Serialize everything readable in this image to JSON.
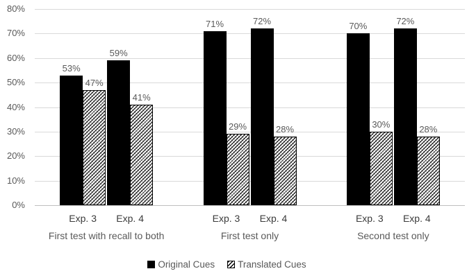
{
  "chart_data": {
    "type": "bar",
    "title": "",
    "xlabel": "",
    "ylabel": "",
    "ylim": [
      0,
      80
    ],
    "ytick_step": 10,
    "ytick_labels": [
      "0%",
      "10%",
      "20%",
      "30%",
      "40%",
      "50%",
      "60%",
      "70%",
      "80%"
    ],
    "grid": true,
    "legend_position": "bottom",
    "legend": [
      {
        "label": "Original Cues",
        "fill": "solid"
      },
      {
        "label": "Translated Cues",
        "fill": "hatched"
      }
    ],
    "groups": [
      {
        "label": "First test with recall to both",
        "clusters": [
          {
            "label": "Exp. 3",
            "bars": [
              {
                "series": "Original Cues",
                "value": 53,
                "label": "53%"
              },
              {
                "series": "Translated Cues",
                "value": 47,
                "label": "47%"
              }
            ]
          },
          {
            "label": "Exp. 4",
            "bars": [
              {
                "series": "Original Cues",
                "value": 59,
                "label": "59%"
              },
              {
                "series": "Translated Cues",
                "value": 41,
                "label": "41%"
              }
            ]
          }
        ]
      },
      {
        "label": "First test only",
        "clusters": [
          {
            "label": "Exp. 3",
            "bars": [
              {
                "series": "Original Cues",
                "value": 71,
                "label": "71%"
              },
              {
                "series": "Translated Cues",
                "value": 29,
                "label": "29%"
              }
            ]
          },
          {
            "label": "Exp. 4",
            "bars": [
              {
                "series": "Original Cues",
                "value": 72,
                "label": "72%"
              },
              {
                "series": "Translated Cues",
                "value": 28,
                "label": "28%"
              }
            ]
          }
        ]
      },
      {
        "label": "Second test only",
        "clusters": [
          {
            "label": "Exp. 3",
            "bars": [
              {
                "series": "Original Cues",
                "value": 70,
                "label": "70%"
              },
              {
                "series": "Translated Cues",
                "value": 30,
                "label": "30%"
              }
            ]
          },
          {
            "label": "Exp. 4",
            "bars": [
              {
                "series": "Original Cues",
                "value": 72,
                "label": "72%"
              },
              {
                "series": "Translated Cues",
                "value": 28,
                "label": "28%"
              }
            ]
          }
        ]
      }
    ],
    "colors": {
      "bar_solid": "#000000",
      "bar_hatched_line": "#000000",
      "gridline": "#d9d9d9",
      "axis_line": "#bfbfbf",
      "tick_label": "#595959",
      "data_label": "#595959",
      "category_label": "#3b3b3b",
      "group_label": "#595959"
    }
  }
}
